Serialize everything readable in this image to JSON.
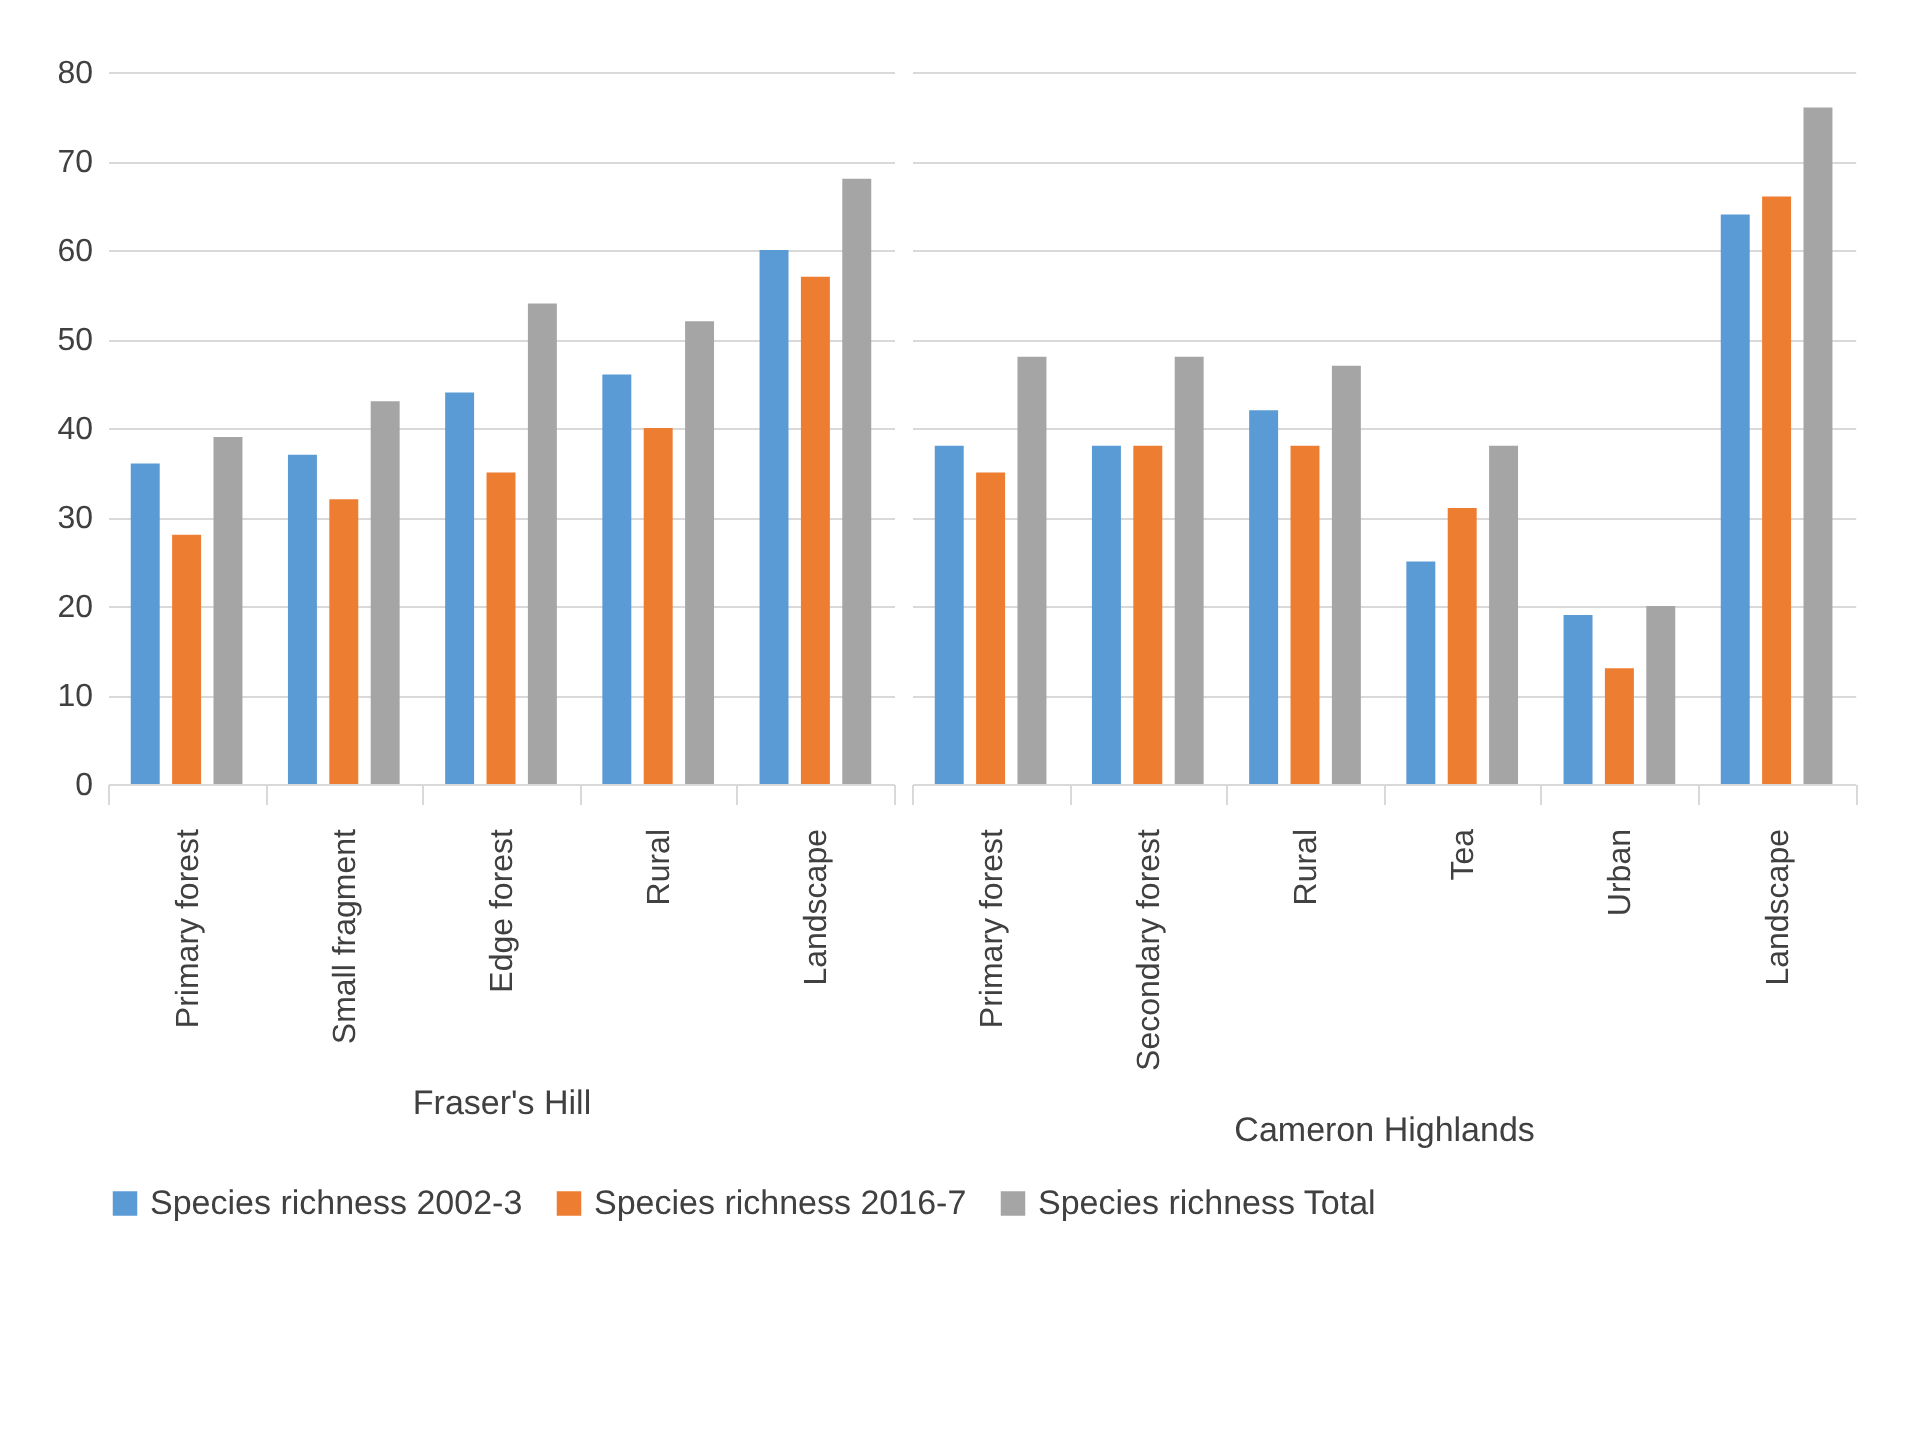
{
  "chart_data": [
    {
      "type": "bar",
      "xlabel": "Fraser's Hill",
      "categories": [
        "Primary forest",
        "Small fragment",
        "Edge forest",
        "Rural",
        "Landscape"
      ],
      "series": [
        {
          "name": "Species richness 2002-3",
          "color": "#5b9bd5",
          "values": [
            36,
            37,
            44,
            46,
            60
          ]
        },
        {
          "name": "Species richness 2016-7",
          "color": "#ed7d31",
          "values": [
            28,
            32,
            35,
            40,
            57
          ]
        },
        {
          "name": "Species richness Total",
          "color": "#a5a5a5",
          "values": [
            39,
            43,
            54,
            52,
            68
          ]
        }
      ],
      "ylim": [
        0,
        80
      ],
      "yticks": [
        0,
        10,
        20,
        30,
        40,
        50,
        60,
        70,
        80
      ],
      "grid": "y",
      "legend": "bottom"
    },
    {
      "type": "bar",
      "xlabel": "Cameron Highlands",
      "categories": [
        "Primary forest",
        "Secondary forest",
        "Rural",
        "Tea",
        "Urban",
        "Landscape"
      ],
      "series": [
        {
          "name": "Species richness 2002-3",
          "color": "#5b9bd5",
          "values": [
            38,
            38,
            42,
            25,
            19,
            64
          ]
        },
        {
          "name": "Species richness 2016-7",
          "color": "#ed7d31",
          "values": [
            35,
            38,
            38,
            31,
            13,
            66
          ]
        },
        {
          "name": "Species richness Total",
          "color": "#a5a5a5",
          "values": [
            48,
            48,
            47,
            38,
            20,
            76
          ]
        }
      ],
      "ylim": [
        0,
        80
      ],
      "yticks": [
        0,
        10,
        20,
        30,
        40,
        50,
        60,
        70,
        80
      ],
      "grid": "y",
      "tick_labels": "x"
    }
  ]
}
